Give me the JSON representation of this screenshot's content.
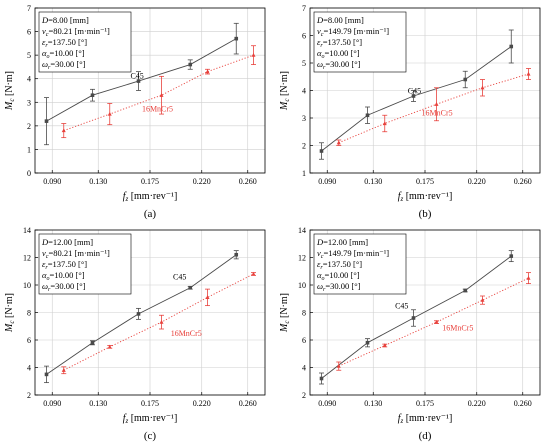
{
  "figure": {
    "panels": [
      {
        "caption": "(a)",
        "xlabel": "f",
        "xlabel_sub": "z",
        "xlabel_unit": " [mm·rev⁻¹]",
        "ylabel": "M",
        "ylabel_sub": "c",
        "ylabel_unit": " [N·m]",
        "info": [
          {
            "sym": "D",
            "sub": "",
            "val": "=8.00 [mm]"
          },
          {
            "sym": "v",
            "sub": "c",
            "val": "=80.21 [m·min⁻¹]"
          },
          {
            "sym": "ε",
            "sub": "r",
            "val": "=137.50 [°]"
          },
          {
            "sym": "α",
            "sub": "o",
            "val": "=10.00 [°]"
          },
          {
            "sym": "ω",
            "sub": "r",
            "val": "=30.00 [°]"
          }
        ]
      },
      {
        "caption": "(b)",
        "xlabel": "f",
        "xlabel_sub": "z",
        "xlabel_unit": " [mm·rev⁻¹]",
        "ylabel": "M",
        "ylabel_sub": "c",
        "ylabel_unit": " [N·m]",
        "info": [
          {
            "sym": "D",
            "sub": "",
            "val": "=8.00 [mm]"
          },
          {
            "sym": "v",
            "sub": "c",
            "val": "=149.79 [m·min⁻¹]"
          },
          {
            "sym": "ε",
            "sub": "r",
            "val": "=137.50 [°]"
          },
          {
            "sym": "α",
            "sub": "o",
            "val": "=10.00 [°]"
          },
          {
            "sym": "ω",
            "sub": "r",
            "val": "=30.00 [°]"
          }
        ]
      },
      {
        "caption": "(c)",
        "xlabel": "f",
        "xlabel_sub": "z",
        "xlabel_unit": " [mm·rev⁻¹]",
        "ylabel": "M",
        "ylabel_sub": "c",
        "ylabel_unit": " [N·m]",
        "info": [
          {
            "sym": "D",
            "sub": "",
            "val": "=12.00 [mm]"
          },
          {
            "sym": "v",
            "sub": "c",
            "val": "=80.21 [m·min⁻¹]"
          },
          {
            "sym": "ε",
            "sub": "r",
            "val": "=137.50 [°]"
          },
          {
            "sym": "α",
            "sub": "o",
            "val": "=10.00 [°]"
          },
          {
            "sym": "ω",
            "sub": "r",
            "val": "=30.00 [°]"
          }
        ]
      },
      {
        "caption": "(d)",
        "xlabel": "f",
        "xlabel_sub": "z",
        "xlabel_unit": " [mm·rev⁻¹]",
        "ylabel": "M",
        "ylabel_sub": "c",
        "ylabel_unit": " [N·m]",
        "info": [
          {
            "sym": "D",
            "sub": "",
            "val": "=12.00 [mm]"
          },
          {
            "sym": "v",
            "sub": "c",
            "val": "=149.79 [m·min⁻¹]"
          },
          {
            "sym": "ε",
            "sub": "r",
            "val": "=137.50 [°]"
          },
          {
            "sym": "α",
            "sub": "o",
            "val": "=10.00 [°]"
          },
          {
            "sym": "ω",
            "sub": "r",
            "val": "=30.00 [°]"
          }
        ]
      }
    ],
    "colors": {
      "C45": "#4a4a4a",
      "16MnCr5": "#e8413c",
      "grid": "#cfcfcf",
      "axis": "#000000"
    }
  },
  "chart_data": [
    {
      "type": "line",
      "xlim": [
        0.075,
        0.275
      ],
      "ylim": [
        0,
        7
      ],
      "xticks": [
        0.09,
        0.13,
        0.175,
        0.22,
        0.26
      ],
      "xtick_labels": [
        "0.090",
        "0.130",
        "0.175",
        "0.220",
        "0.260"
      ],
      "yticks": [
        0,
        1,
        2,
        3,
        4,
        5,
        6,
        7
      ],
      "grid": true,
      "series": [
        {
          "name": "C45",
          "x": [
            0.085,
            0.125,
            0.165,
            0.21,
            0.25
          ],
          "y": [
            2.2,
            3.3,
            3.9,
            4.6,
            5.7
          ],
          "err": [
            1.0,
            0.25,
            0.4,
            0.2,
            0.65
          ],
          "style": "solid",
          "marker": "square"
        },
        {
          "name": "16MnCr5",
          "x": [
            0.1,
            0.14,
            0.185,
            0.225,
            0.265
          ],
          "y": [
            1.8,
            2.5,
            3.3,
            4.3,
            5.0
          ],
          "err": [
            0.3,
            0.45,
            0.8,
            0.1,
            0.4
          ],
          "style": "dotted",
          "marker": "triangle"
        }
      ],
      "labels": [
        {
          "text": "C45",
          "x": 0.158,
          "y": 4.0
        },
        {
          "text": "16MnCr5",
          "x": 0.168,
          "y": 2.6
        }
      ]
    },
    {
      "type": "line",
      "xlim": [
        0.075,
        0.275
      ],
      "ylim": [
        1,
        7
      ],
      "xticks": [
        0.09,
        0.13,
        0.175,
        0.22,
        0.26
      ],
      "xtick_labels": [
        "0.090",
        "0.130",
        "0.175",
        "0.220",
        "0.260"
      ],
      "yticks": [
        1,
        2,
        3,
        4,
        5,
        6,
        7
      ],
      "grid": true,
      "series": [
        {
          "name": "C45",
          "x": [
            0.085,
            0.125,
            0.165,
            0.21,
            0.25
          ],
          "y": [
            1.8,
            3.1,
            3.8,
            4.4,
            5.6
          ],
          "err": [
            0.3,
            0.3,
            0.2,
            0.3,
            0.6
          ],
          "style": "solid",
          "marker": "square"
        },
        {
          "name": "16MnCr5",
          "x": [
            0.1,
            0.14,
            0.185,
            0.225,
            0.265
          ],
          "y": [
            2.1,
            2.8,
            3.5,
            4.1,
            4.6
          ],
          "err": [
            0.1,
            0.3,
            0.6,
            0.3,
            0.2
          ],
          "style": "dotted",
          "marker": "triangle"
        }
      ],
      "labels": [
        {
          "text": "C45",
          "x": 0.16,
          "y": 3.9
        },
        {
          "text": "16MnCr5",
          "x": 0.172,
          "y": 3.1
        }
      ]
    },
    {
      "type": "line",
      "xlim": [
        0.075,
        0.275
      ],
      "ylim": [
        2,
        14
      ],
      "xticks": [
        0.09,
        0.13,
        0.175,
        0.22,
        0.26
      ],
      "xtick_labels": [
        "0.090",
        "0.130",
        "0.175",
        "0.220",
        "0.260"
      ],
      "yticks": [
        2,
        4,
        6,
        8,
        10,
        12,
        14
      ],
      "grid": true,
      "series": [
        {
          "name": "C45",
          "x": [
            0.085,
            0.125,
            0.165,
            0.21,
            0.25
          ],
          "y": [
            3.5,
            5.8,
            7.9,
            9.8,
            12.2
          ],
          "err": [
            0.6,
            0.15,
            0.4,
            0.1,
            0.3
          ],
          "style": "solid",
          "marker": "square"
        },
        {
          "name": "16MnCr5",
          "x": [
            0.1,
            0.14,
            0.185,
            0.225,
            0.265
          ],
          "y": [
            3.8,
            5.5,
            7.3,
            9.1,
            10.8
          ],
          "err": [
            0.25,
            0.1,
            0.5,
            0.6,
            0.1
          ],
          "style": "dotted",
          "marker": "triangle"
        }
      ],
      "labels": [
        {
          "text": "C45",
          "x": 0.195,
          "y": 10.4
        },
        {
          "text": "16MnCr5",
          "x": 0.193,
          "y": 6.3
        }
      ]
    },
    {
      "type": "line",
      "xlim": [
        0.075,
        0.275
      ],
      "ylim": [
        2,
        14
      ],
      "xticks": [
        0.09,
        0.13,
        0.175,
        0.22,
        0.26
      ],
      "xtick_labels": [
        "0.090",
        "0.130",
        "0.175",
        "0.220",
        "0.260"
      ],
      "yticks": [
        2,
        4,
        6,
        8,
        10,
        12,
        14
      ],
      "grid": true,
      "series": [
        {
          "name": "C45",
          "x": [
            0.085,
            0.125,
            0.165,
            0.21,
            0.25
          ],
          "y": [
            3.2,
            5.8,
            7.6,
            9.6,
            12.1
          ],
          "err": [
            0.4,
            0.3,
            0.6,
            0.1,
            0.4
          ],
          "style": "solid",
          "marker": "square"
        },
        {
          "name": "16MnCr5",
          "x": [
            0.1,
            0.14,
            0.185,
            0.225,
            0.265
          ],
          "y": [
            4.1,
            5.6,
            7.3,
            8.9,
            10.5
          ],
          "err": [
            0.3,
            0.1,
            0.1,
            0.3,
            0.4
          ],
          "style": "dotted",
          "marker": "triangle"
        }
      ],
      "labels": [
        {
          "text": "C45",
          "x": 0.149,
          "y": 8.3
        },
        {
          "text": "16MnCr5",
          "x": 0.19,
          "y": 6.7
        }
      ]
    }
  ]
}
